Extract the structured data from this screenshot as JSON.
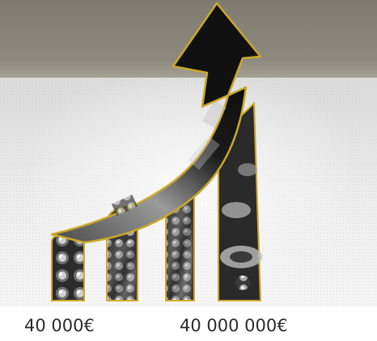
{
  "figure": {
    "art_name": "growth-arrow-with-bars-photo",
    "colors": {
      "top_band": "#8c877b",
      "background": "#e6e6e6",
      "outline": "#c9a92a",
      "arrow": "#111111",
      "photo_dark": "#2a2a2a"
    }
  },
  "labels": {
    "start_value": "40 000€",
    "end_value": "40 000 000€"
  }
}
